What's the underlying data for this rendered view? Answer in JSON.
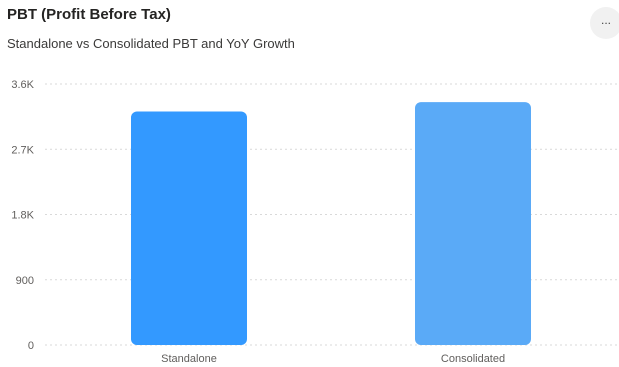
{
  "header": {
    "title": "PBT (Profit Before Tax)",
    "subtitle": "Standalone vs Consolidated PBT and YoY Growth",
    "more_label": "..."
  },
  "chart_data": {
    "type": "bar",
    "title": "PBT (Profit Before Tax)",
    "subtitle": "Standalone vs Consolidated PBT and YoY Growth",
    "categories": [
      "Standalone",
      "Consolidated"
    ],
    "values": [
      3220,
      3350
    ],
    "ylim": [
      0,
      3600
    ],
    "yticks": [
      0,
      900,
      1800,
      2700,
      3600
    ],
    "ytick_labels": [
      "0",
      "900",
      "1.8K",
      "2.7K",
      "3.6K"
    ],
    "grid": true,
    "colors": [
      "#3399ff",
      "#5aaaf7"
    ]
  }
}
